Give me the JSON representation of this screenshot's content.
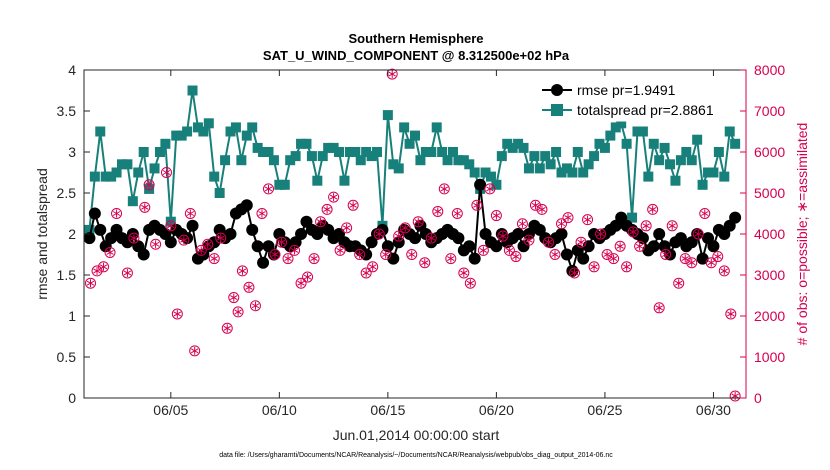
{
  "colors": {
    "rmse": "#000000",
    "spread": "#18807a",
    "obs": "#d6004f",
    "axes": "#262626"
  },
  "chart_data": {
    "type": "line",
    "title": "Southern Hemisphere",
    "subtitle": "SAT_U_WIND_COMPONENT @ 8.312500e+02 hPa",
    "xlabel": "Jun.01,2014 00:00:00 start",
    "ylabel": "rmse and totalspread",
    "ylabel_right": "# of obs: o=possible; ∗=assimilated",
    "footnote": "data file: /Users/gharamti/Documents/NCAR/Reanalysis/~/Documents/NCAR/Reanalysis/webpub/obs_diag_output_2014-06.nc",
    "xlim": [
      1,
      31.5
    ],
    "ylim": [
      0,
      4
    ],
    "ylim_right": [
      0,
      8000
    ],
    "x_ticks": [
      5,
      10,
      15,
      20,
      25,
      30
    ],
    "x_tick_labels": [
      "06/05",
      "06/10",
      "06/15",
      "06/20",
      "06/25",
      "06/30"
    ],
    "y_ticks": [
      0,
      0.5,
      1,
      1.5,
      2,
      2.5,
      3,
      3.5,
      4
    ],
    "y_tick_labels": [
      "0",
      "0.5",
      "1",
      "1.5",
      "2",
      "2.5",
      "3",
      "3.5",
      "4"
    ],
    "y_right_ticks": [
      0,
      1000,
      2000,
      3000,
      4000,
      5000,
      6000,
      7000,
      8000
    ],
    "y_right_tick_labels": [
      "0",
      "1000",
      "2000",
      "3000",
      "4000",
      "5000",
      "6000",
      "7000",
      "8000"
    ],
    "legend": {
      "location": "top-right",
      "entries": [
        "rmse pr=1.9491",
        "totalspread pr=2.8861"
      ]
    },
    "series": [
      {
        "name": "rmse",
        "axis": "left",
        "x": [
          1.25,
          1.5,
          1.75,
          2.0,
          2.25,
          2.5,
          2.75,
          3.0,
          3.25,
          3.5,
          3.75,
          4.0,
          4.25,
          4.5,
          4.75,
          5.0,
          5.25,
          5.5,
          5.75,
          6.0,
          6.25,
          6.5,
          6.75,
          7.0,
          7.25,
          7.5,
          7.75,
          8.0,
          8.25,
          8.5,
          8.75,
          9.0,
          9.25,
          9.5,
          9.75,
          10.0,
          10.25,
          10.5,
          10.75,
          11.0,
          11.25,
          11.5,
          11.75,
          12.0,
          12.25,
          12.5,
          12.75,
          13.0,
          13.25,
          13.5,
          13.75,
          14.0,
          14.25,
          14.5,
          14.75,
          15.0,
          15.25,
          15.5,
          15.75,
          16.0,
          16.25,
          16.5,
          16.75,
          17.0,
          17.25,
          17.5,
          17.75,
          18.0,
          18.25,
          18.5,
          18.75,
          19.0,
          19.25,
          19.5,
          19.75,
          20.0,
          20.25,
          20.5,
          20.75,
          21.0,
          21.25,
          21.5,
          21.75,
          22.0,
          22.25,
          22.5,
          22.75,
          23.0,
          23.25,
          23.5,
          23.75,
          24.0,
          24.25,
          24.5,
          24.75,
          25.0,
          25.25,
          25.5,
          25.75,
          26.0,
          26.25,
          26.5,
          26.75,
          27.0,
          27.25,
          27.5,
          27.75,
          28.0,
          28.25,
          28.5,
          28.75,
          29.0,
          29.25,
          29.5,
          29.75,
          30.0,
          30.25,
          30.5,
          30.75,
          31.0
        ],
        "values": [
          1.95,
          2.25,
          2.05,
          1.85,
          1.95,
          2.05,
          1.95,
          1.9,
          2.0,
          1.85,
          1.75,
          2.05,
          2.1,
          2.05,
          2.0,
          1.9,
          2.05,
          2.0,
          1.95,
          2.1,
          1.7,
          1.75,
          1.85,
          1.9,
          2.05,
          1.95,
          2.0,
          2.25,
          2.3,
          2.35,
          2.05,
          1.85,
          1.65,
          1.85,
          1.75,
          2.0,
          1.9,
          1.85,
          1.9,
          2.0,
          2.15,
          2.05,
          2.0,
          2.1,
          2.05,
          1.95,
          2.0,
          1.9,
          1.85,
          1.85,
          1.8,
          1.75,
          1.9,
          2.0,
          2.05,
          1.85,
          1.7,
          1.9,
          2.05,
          2.0,
          1.95,
          2.1,
          2.0,
          1.9,
          1.95,
          2.0,
          2.05,
          2.0,
          1.95,
          1.8,
          1.85,
          1.7,
          2.6,
          2.0,
          1.9,
          1.85,
          2.0,
          1.9,
          1.95,
          2.0,
          1.85,
          2.0,
          2.1,
          2.05,
          1.95,
          1.9,
          1.95,
          2.0,
          1.75,
          1.55,
          1.8,
          1.7,
          1.85,
          2.0,
          1.95,
          2.0,
          2.05,
          2.1,
          2.2,
          2.1,
          2.05,
          2.0,
          1.95,
          1.8,
          1.85,
          2.0,
          1.85,
          1.75,
          1.9,
          1.95,
          1.85,
          1.9,
          2.0,
          1.7,
          1.95,
          1.85,
          2.05,
          2.0,
          2.1,
          2.2
        ]
      },
      {
        "name": "totalspread",
        "axis": "left",
        "x": [
          1.25,
          1.5,
          1.75,
          2.0,
          2.25,
          2.5,
          2.75,
          3.0,
          3.25,
          3.5,
          3.75,
          4.0,
          4.25,
          4.5,
          4.75,
          5.0,
          5.25,
          5.5,
          5.75,
          6.0,
          6.25,
          6.5,
          6.75,
          7.0,
          7.25,
          7.5,
          7.75,
          8.0,
          8.25,
          8.5,
          8.75,
          9.0,
          9.25,
          9.5,
          9.75,
          10.0,
          10.25,
          10.5,
          10.75,
          11.0,
          11.25,
          11.5,
          11.75,
          12.0,
          12.25,
          12.5,
          12.75,
          13.0,
          13.25,
          13.5,
          13.75,
          14.0,
          14.25,
          14.5,
          14.75,
          15.0,
          15.25,
          15.5,
          15.75,
          16.0,
          16.25,
          16.5,
          16.75,
          17.0,
          17.25,
          17.5,
          17.75,
          18.0,
          18.25,
          18.5,
          18.75,
          19.0,
          19.25,
          19.5,
          19.75,
          20.0,
          20.25,
          20.5,
          20.75,
          21.0,
          21.25,
          21.5,
          21.75,
          22.0,
          22.25,
          22.5,
          22.75,
          23.0,
          23.25,
          23.5,
          23.75,
          24.0,
          24.25,
          24.5,
          24.75,
          25.0,
          25.25,
          25.5,
          25.75,
          26.0,
          26.25,
          26.5,
          26.75,
          27.0,
          27.25,
          27.5,
          27.75,
          28.0,
          28.25,
          28.5,
          28.75,
          29.0,
          29.25,
          29.5,
          29.75,
          30.0,
          30.25,
          30.5,
          30.75,
          31.0
        ],
        "values": [
          2.05,
          2.7,
          3.25,
          2.7,
          2.7,
          2.75,
          2.85,
          2.85,
          2.4,
          2.75,
          3.0,
          2.55,
          2.8,
          3.0,
          3.1,
          2.15,
          3.2,
          3.2,
          3.25,
          3.75,
          3.3,
          3.25,
          3.35,
          2.7,
          2.5,
          2.9,
          3.25,
          3.3,
          2.9,
          3.2,
          3.3,
          3.05,
          3.0,
          3.0,
          2.9,
          2.6,
          2.6,
          2.9,
          2.95,
          3.1,
          3.1,
          2.95,
          2.65,
          2.95,
          3.05,
          3.05,
          3.0,
          2.65,
          3.0,
          3.0,
          2.9,
          3.0,
          2.95,
          3.0,
          2.1,
          3.45,
          2.85,
          2.8,
          3.3,
          3.1,
          3.2,
          2.9,
          3.0,
          3.0,
          3.3,
          3.0,
          2.9,
          3.0,
          2.9,
          2.9,
          2.85,
          2.75,
          2.55,
          2.75,
          2.7,
          2.6,
          2.95,
          3.1,
          3.05,
          3.1,
          3.05,
          2.8,
          2.95,
          2.8,
          2.95,
          2.85,
          3.0,
          2.75,
          2.8,
          2.75,
          3.0,
          2.75,
          2.85,
          2.95,
          3.1,
          3.05,
          3.2,
          3.3,
          3.35,
          3.1,
          2.2,
          3.25,
          3.25,
          2.7,
          3.1,
          2.9,
          3.05,
          2.85,
          2.65,
          2.9,
          3.0,
          2.9,
          3.15,
          2.6,
          2.75,
          2.75,
          3.0,
          2.7,
          3.25,
          3.1
        ]
      },
      {
        "name": "possible obs",
        "axis": "right",
        "marker": "circle",
        "x": [
          1.3,
          1.6,
          1.9,
          2.2,
          2.5,
          3.0,
          3.3,
          3.8,
          4.0,
          4.3,
          4.8,
          5.0,
          5.3,
          5.6,
          5.9,
          6.1,
          6.4,
          6.7,
          7.0,
          7.3,
          7.6,
          7.9,
          8.1,
          8.3,
          8.6,
          8.9,
          9.2,
          9.5,
          9.8,
          10.1,
          10.4,
          10.7,
          11.0,
          11.3,
          11.6,
          11.9,
          12.2,
          12.5,
          12.8,
          13.1,
          13.4,
          13.7,
          14.0,
          14.3,
          14.6,
          14.9,
          15.2,
          15.5,
          15.8,
          16.1,
          16.4,
          16.7,
          17.0,
          17.3,
          17.6,
          17.9,
          18.2,
          18.5,
          18.8,
          19.1,
          19.4,
          19.7,
          20.0,
          20.3,
          20.6,
          20.9,
          21.2,
          21.5,
          21.8,
          22.1,
          22.4,
          22.7,
          23.0,
          23.3,
          23.6,
          23.9,
          24.2,
          24.5,
          24.8,
          25.1,
          25.4,
          25.7,
          26.0,
          26.3,
          26.6,
          26.9,
          27.2,
          27.5,
          27.8,
          28.1,
          28.4,
          28.7,
          29.0,
          29.3,
          29.6,
          29.9,
          30.2,
          30.5,
          30.8,
          31.0
        ],
        "values": [
          2800,
          3100,
          3200,
          3550,
          4500,
          3050,
          3900,
          4650,
          5200,
          3750,
          5500,
          4200,
          2050,
          3850,
          4500,
          1150,
          3600,
          3750,
          3400,
          3900,
          1700,
          2450,
          2100,
          3100,
          2700,
          2250,
          4500,
          5100,
          3500,
          3800,
          3400,
          3600,
          2800,
          2950,
          3400,
          4300,
          4600,
          4900,
          3600,
          4150,
          4700,
          3500,
          3050,
          3200,
          4000,
          3500,
          7900,
          3950,
          4150,
          3500,
          4300,
          3300,
          3900,
          4550,
          5100,
          3400,
          4500,
          3050,
          2800,
          4700,
          3600,
          5100,
          4450,
          3950,
          3600,
          3450,
          4250,
          3850,
          4700,
          4600,
          3800,
          3500,
          4250,
          4400,
          3050,
          3800,
          4350,
          3200,
          4000,
          3500,
          3400,
          3700,
          3200,
          4050,
          3700,
          4200,
          4600,
          2200,
          3500,
          4200,
          2800,
          3400,
          3300,
          4000,
          4500,
          3300,
          3450,
          3100,
          2050,
          50
        ],
        "x_assim": [
          1.3,
          1.6,
          1.9,
          2.2,
          2.5,
          3.0,
          3.3,
          3.8,
          4.0,
          4.3,
          4.8,
          5.0,
          5.3,
          5.6,
          5.9,
          6.1,
          6.4,
          6.7,
          7.0,
          7.3,
          7.6,
          7.9,
          8.1,
          8.3,
          8.6,
          8.9,
          9.2,
          9.5,
          9.8,
          10.1,
          10.4,
          10.7,
          11.0,
          11.3,
          11.6,
          11.9,
          12.2,
          12.5,
          12.8,
          13.1,
          13.4,
          13.7,
          14.0,
          14.3,
          14.6,
          14.9,
          15.2,
          15.5,
          15.8,
          16.1,
          16.4,
          16.7,
          17.0,
          17.3,
          17.6,
          17.9,
          18.2,
          18.5,
          18.8,
          19.1,
          19.4,
          19.7,
          20.0,
          20.3,
          20.6,
          20.9,
          21.2,
          21.5,
          21.8,
          22.1,
          22.4,
          22.7,
          23.0,
          23.3,
          23.6,
          23.9,
          24.2,
          24.5,
          24.8,
          25.1,
          25.4,
          25.7,
          26.0,
          26.3,
          26.6,
          26.9,
          27.2,
          27.5,
          27.8,
          28.1,
          28.4,
          28.7,
          29.0,
          29.3,
          29.6,
          29.9,
          30.2,
          30.5,
          30.8,
          31.0
        ]
      }
    ]
  }
}
